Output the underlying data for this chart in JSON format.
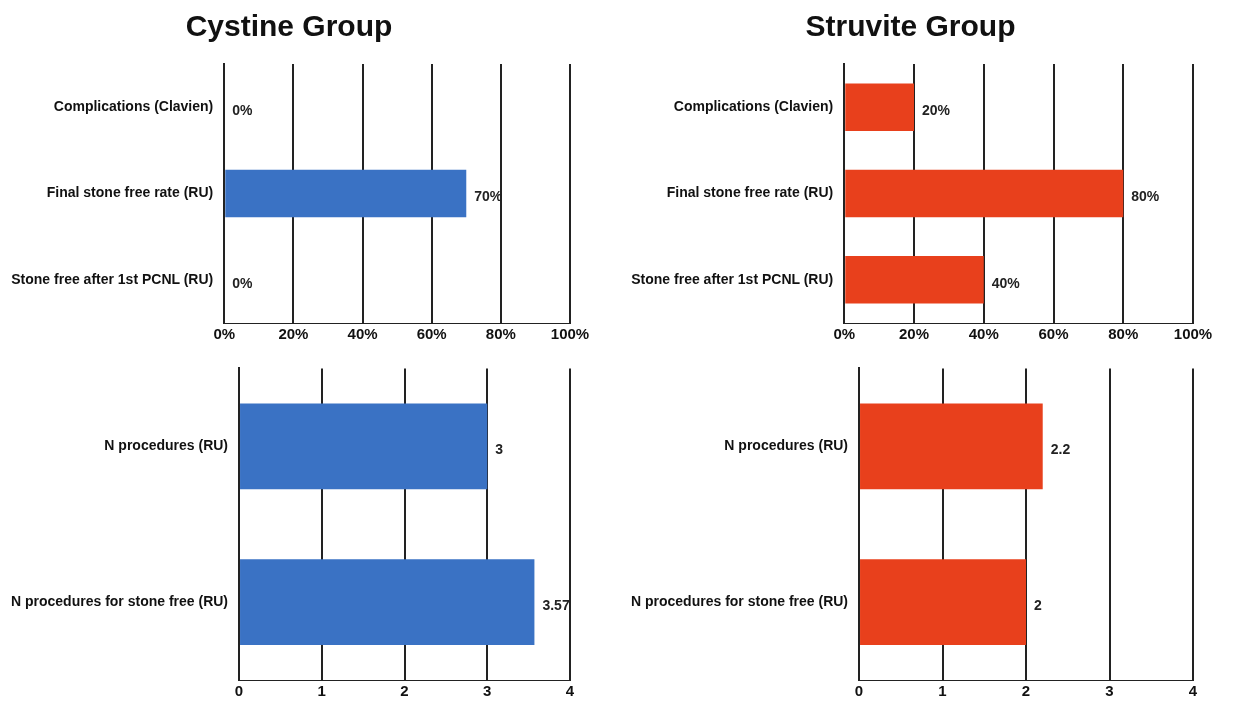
{
  "chart_data": [
    {
      "type": "bar",
      "orientation": "horizontal",
      "title": "Cystine Group",
      "categories": [
        "Complications (Clavien)",
        "Final stone free rate (RU)",
        "Stone free after 1st PCNL (RU)"
      ],
      "values": [
        0,
        70,
        0
      ],
      "color": "#3a72c4",
      "value_labels": [
        "0%",
        "70%",
        "0%"
      ],
      "xlim": [
        0,
        100
      ],
      "xticks": [
        {
          "value": 0,
          "label": "0%"
        },
        {
          "value": 20,
          "label": "20%"
        },
        {
          "value": 40,
          "label": "40%"
        },
        {
          "value": 60,
          "label": "60%"
        },
        {
          "value": 80,
          "label": "80%"
        },
        {
          "value": 100,
          "label": "100%"
        }
      ],
      "grid": "x",
      "legend": false
    },
    {
      "type": "bar",
      "orientation": "horizontal",
      "title": "Struvite Group",
      "categories": [
        "Complications (Clavien)",
        "Final stone free rate (RU)",
        "Stone free after 1st PCNL (RU)"
      ],
      "values": [
        20,
        80,
        40
      ],
      "color": "#e8401c",
      "value_labels": [
        "20%",
        "80%",
        "40%"
      ],
      "xlim": [
        0,
        100
      ],
      "xticks": [
        {
          "value": 0,
          "label": "0%"
        },
        {
          "value": 20,
          "label": "20%"
        },
        {
          "value": 40,
          "label": "40%"
        },
        {
          "value": 60,
          "label": "60%"
        },
        {
          "value": 80,
          "label": "80%"
        },
        {
          "value": 100,
          "label": "100%"
        }
      ],
      "grid": "x",
      "legend": false
    },
    {
      "type": "bar",
      "orientation": "horizontal",
      "categories": [
        "N procedures (RU)",
        "N procedures for stone free (RU)"
      ],
      "values": [
        3,
        3.57
      ],
      "color": "#3a72c4",
      "data_labels": true,
      "xlim": [
        0,
        4
      ],
      "xticks": [
        0,
        1,
        2,
        3,
        4
      ],
      "grid": "x",
      "legend": false
    },
    {
      "type": "bar",
      "orientation": "horizontal",
      "categories": [
        "N procedures (RU)",
        "N procedures for stone free (RU)"
      ],
      "values": [
        2.2,
        2
      ],
      "color": "#e8401c",
      "data_labels": true,
      "xlim": [
        0,
        4
      ],
      "xticks": [
        0,
        1,
        2,
        3,
        4
      ],
      "grid": "x",
      "legend": false
    }
  ]
}
